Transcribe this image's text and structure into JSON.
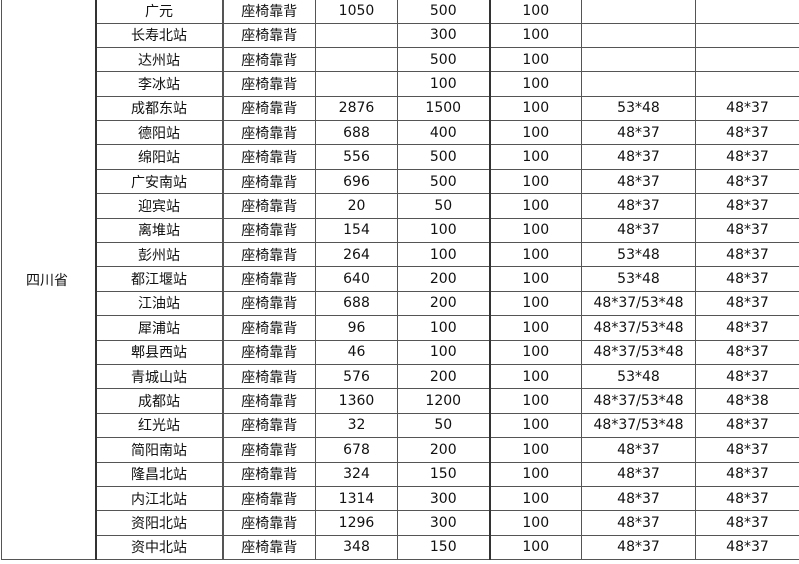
{
  "province": "四川省",
  "rows": [
    [
      "广元",
      "座椅靠背",
      "1050",
      "500",
      "100",
      "",
      ""
    ],
    [
      "长寿北站",
      "座椅靠背",
      "",
      "300",
      "100",
      "",
      ""
    ],
    [
      "达州站",
      "座椅靠背",
      "",
      "500",
      "100",
      "",
      ""
    ],
    [
      "李冰站",
      "座椅靠背",
      "",
      "100",
      "100",
      "",
      ""
    ],
    [
      "成都东站",
      "座椅靠背",
      "2876",
      "1500",
      "100",
      "53*48",
      "48*37"
    ],
    [
      "德阳站",
      "座椅靠背",
      "688",
      "400",
      "100",
      "48*37",
      "48*37"
    ],
    [
      "绵阳站",
      "座椅靠背",
      "556",
      "500",
      "100",
      "48*37",
      "48*37"
    ],
    [
      "广安南站",
      "座椅靠背",
      "696",
      "500",
      "100",
      "48*37",
      "48*37"
    ],
    [
      "迎宾站",
      "座椅靠背",
      "20",
      "50",
      "100",
      "48*37",
      "48*37"
    ],
    [
      "离堆站",
      "座椅靠背",
      "154",
      "100",
      "100",
      "48*37",
      "48*37"
    ],
    [
      "彭州站",
      "座椅靠背",
      "264",
      "100",
      "100",
      "53*48",
      "48*37"
    ],
    [
      "都江堰站",
      "座椅靠背",
      "640",
      "200",
      "100",
      "53*48",
      "48*37"
    ],
    [
      "江油站",
      "座椅靠背",
      "688",
      "200",
      "100",
      "48*37/53*48",
      "48*37"
    ],
    [
      "犀浦站",
      "座椅靠背",
      "96",
      "100",
      "100",
      "48*37/53*48",
      "48*37"
    ],
    [
      "郫县西站",
      "座椅靠背",
      "46",
      "100",
      "100",
      "48*37/53*48",
      "48*37"
    ],
    [
      "青城山站",
      "座椅靠背",
      "576",
      "200",
      "100",
      "53*48",
      "48*37"
    ],
    [
      "成都站",
      "座椅靠背",
      "1360",
      "1200",
      "100",
      "48*37/53*48",
      "48*38"
    ],
    [
      "红光站",
      "座椅靠背",
      "32",
      "50",
      "100",
      "48*37/53*48",
      "48*37"
    ],
    [
      "简阳南站",
      "座椅靠背",
      "678",
      "200",
      "100",
      "48*37",
      "48*37"
    ],
    [
      "隆昌北站",
      "座椅靠背",
      "324",
      "150",
      "100",
      "48*37",
      "48*37"
    ],
    [
      "内江北站",
      "座椅靠背",
      "1314",
      "300",
      "100",
      "48*37",
      "48*37"
    ],
    [
      "资阳北站",
      "座椅靠背",
      "1296",
      "300",
      "100",
      "48*37",
      "48*37"
    ],
    [
      "资中北站",
      "座椅靠背",
      "348",
      "150",
      "100",
      "48*37",
      "48*37"
    ]
  ]
}
